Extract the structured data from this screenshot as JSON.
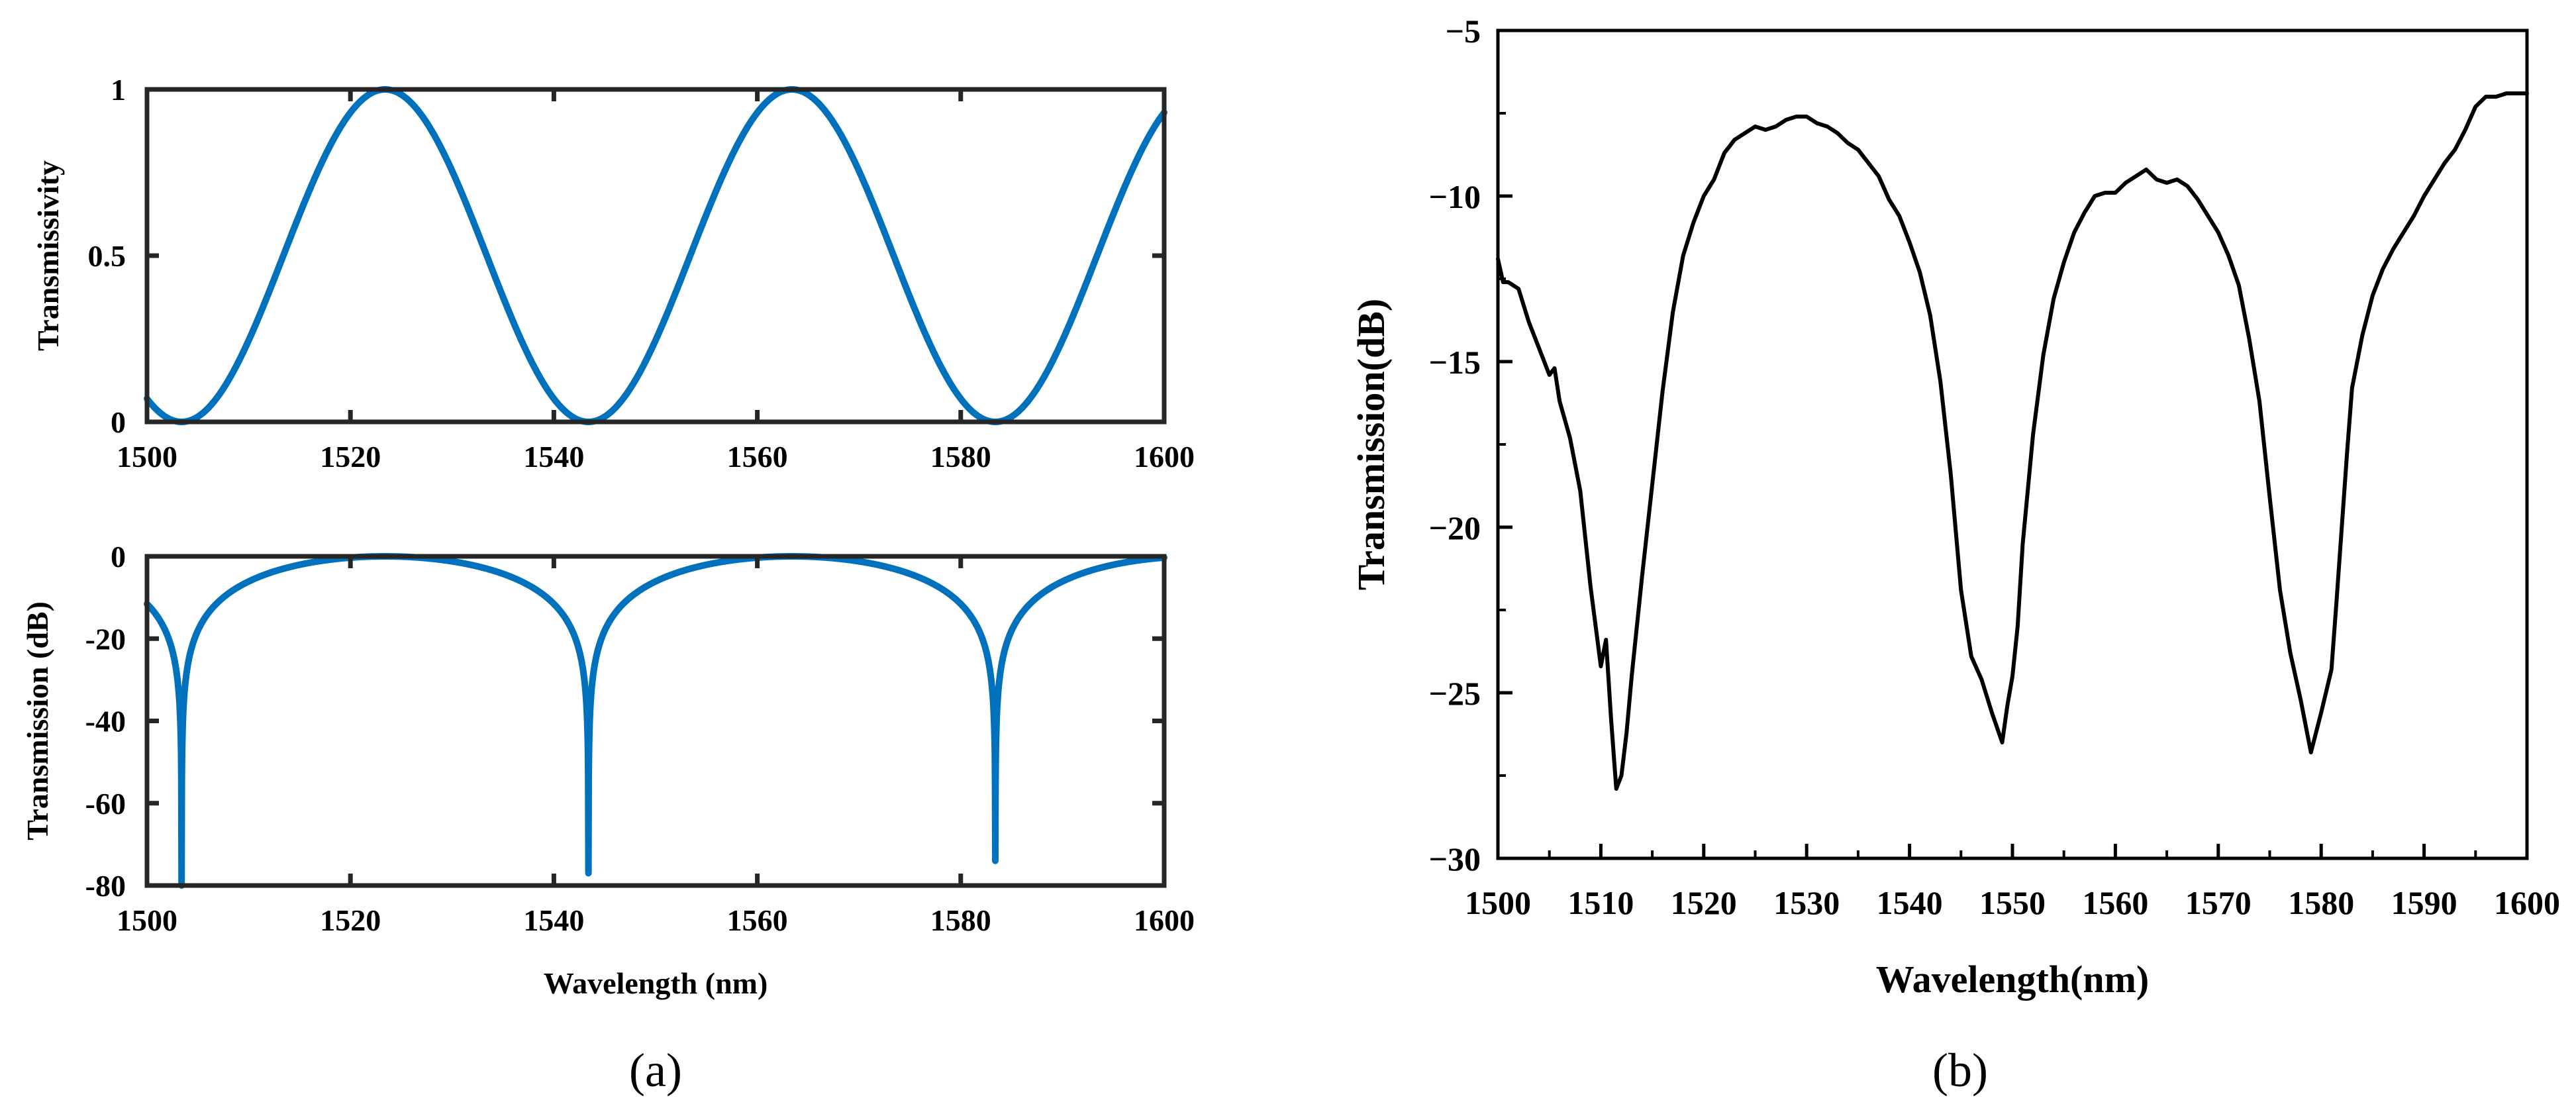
{
  "chart_data": [
    {
      "panel": "a-top",
      "type": "line",
      "title": "",
      "xlabel": "",
      "ylabel": "Transmissivity",
      "xlim": [
        1500,
        1600
      ],
      "ylim": [
        0,
        1
      ],
      "xticks": [
        1500,
        1520,
        1540,
        1560,
        1580,
        1600
      ],
      "xtick_labels": [
        "1500",
        "1520",
        "1540",
        "1560",
        "1580",
        "1600"
      ],
      "yticks": [
        0,
        0.5,
        1
      ],
      "ytick_labels": [
        "0",
        "0.5",
        "1"
      ],
      "color": "#0072BD",
      "series": [
        {
          "name": "transmissivity",
          "model": "(1 + cos(2*pi*(x - 1523.4)/40)) / 2",
          "period_nm": 40,
          "peaks_nm": [
            1523.4,
            1563.4
          ],
          "dips_nm": [
            1503.4,
            1543.4,
            1583.4
          ]
        }
      ]
    },
    {
      "panel": "a-bottom",
      "type": "line",
      "title": "",
      "xlabel": "Wavelength (nm)",
      "ylabel": "Transmission (dB)",
      "xlim": [
        1500,
        1600
      ],
      "ylim": [
        -80,
        0
      ],
      "xticks": [
        1500,
        1520,
        1540,
        1560,
        1580,
        1600
      ],
      "xtick_labels": [
        "1500",
        "1520",
        "1540",
        "1560",
        "1580",
        "1600"
      ],
      "yticks": [
        -80,
        -60,
        -40,
        -20,
        0
      ],
      "ytick_labels": [
        "-80",
        "-60",
        "-40",
        "-20",
        "0"
      ],
      "color": "#0072BD",
      "series": [
        {
          "name": "transmission_db",
          "model": "10*log10(transmissivity)",
          "dip_minima": [
            {
              "x": 1503.4,
              "y": -80
            },
            {
              "x": 1543.4,
              "y": -77
            },
            {
              "x": 1583.4,
              "y": -74
            }
          ]
        }
      ]
    },
    {
      "panel": "b",
      "type": "line",
      "title": "",
      "xlabel": "Wavelength(nm)",
      "ylabel": "Transmission(dB)",
      "xlim": [
        1500,
        1600
      ],
      "ylim": [
        -30,
        -5
      ],
      "xticks": [
        1500,
        1510,
        1520,
        1530,
        1540,
        1550,
        1560,
        1570,
        1580,
        1590,
        1600
      ],
      "xtick_labels": [
        "1500",
        "1510",
        "1520",
        "1530",
        "1540",
        "1550",
        "1560",
        "1570",
        "1580",
        "1590",
        "1600"
      ],
      "yticks": [
        -30,
        -25,
        -20,
        -15,
        -10,
        -5
      ],
      "ytick_labels": [
        "−30",
        "−25",
        "−20",
        "−15",
        "−10",
        "−5"
      ],
      "color": "#000000",
      "series": [
        {
          "name": "measured",
          "x": [
            1500,
            1500.5,
            1501,
            1502,
            1503,
            1504,
            1505,
            1505.5,
            1506,
            1507,
            1508,
            1509,
            1510,
            1510.5,
            1511,
            1511.5,
            1512,
            1512.5,
            1513,
            1514,
            1515,
            1516,
            1517,
            1518,
            1519,
            1520,
            1521,
            1522,
            1523,
            1524,
            1525,
            1526,
            1527,
            1528,
            1529,
            1530,
            1531,
            1532,
            1533,
            1534,
            1535,
            1536,
            1537,
            1538,
            1539,
            1540,
            1541,
            1542,
            1543,
            1544,
            1545,
            1546,
            1547,
            1548,
            1549,
            1549.5,
            1550,
            1550.5,
            1551,
            1552,
            1553,
            1554,
            1555,
            1556,
            1557,
            1558,
            1559,
            1560,
            1561,
            1562,
            1563,
            1564,
            1565,
            1566,
            1567,
            1568,
            1569,
            1570,
            1571,
            1572,
            1573,
            1574,
            1575,
            1576,
            1577,
            1578,
            1579,
            1580,
            1581,
            1581.5,
            1582,
            1582.5,
            1583,
            1584,
            1585,
            1586,
            1587,
            1588,
            1589,
            1590,
            1591,
            1592,
            1593,
            1594,
            1595,
            1596,
            1597,
            1598,
            1599,
            1600
          ],
          "y": [
            -11.9,
            -12.6,
            -12.6,
            -12.8,
            -13.8,
            -14.6,
            -15.4,
            -15.2,
            -16.2,
            -17.3,
            -18.9,
            -21.8,
            -24.2,
            -23.4,
            -25.8,
            -27.9,
            -27.5,
            -26.2,
            -24.5,
            -21.5,
            -18.7,
            -15.9,
            -13.5,
            -11.8,
            -10.8,
            -10.0,
            -9.5,
            -8.7,
            -8.3,
            -8.1,
            -7.9,
            -8.0,
            -7.9,
            -7.7,
            -7.6,
            -7.6,
            -7.8,
            -7.9,
            -8.1,
            -8.4,
            -8.6,
            -9.0,
            -9.4,
            -10.1,
            -10.6,
            -11.4,
            -12.3,
            -13.6,
            -15.6,
            -18.4,
            -21.9,
            -23.9,
            -24.6,
            -25.6,
            -26.5,
            -25.4,
            -24.5,
            -23.0,
            -20.5,
            -17.2,
            -14.8,
            -13.1,
            -12.0,
            -11.1,
            -10.5,
            -10.0,
            -9.9,
            -9.9,
            -9.6,
            -9.4,
            -9.2,
            -9.5,
            -9.6,
            -9.5,
            -9.7,
            -10.1,
            -10.6,
            -11.1,
            -11.8,
            -12.7,
            -14.3,
            -16.2,
            -19.1,
            -21.9,
            -23.8,
            -25.2,
            -26.8,
            -25.6,
            -24.3,
            -22.2,
            -20.0,
            -17.8,
            -15.8,
            -14.2,
            -13.0,
            -12.2,
            -11.6,
            -11.1,
            -10.6,
            -10.0,
            -9.5,
            -9.0,
            -8.6,
            -8.0,
            -7.3,
            -7.0,
            -7.0,
            -6.9,
            -6.9,
            -6.9
          ]
        }
      ]
    }
  ],
  "labels": {
    "panel_a": "(a)",
    "panel_b": "(b)"
  }
}
